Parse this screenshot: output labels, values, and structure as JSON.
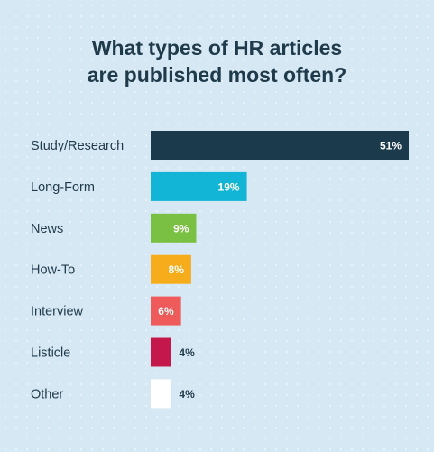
{
  "chart_data": {
    "type": "bar",
    "orientation": "horizontal",
    "title": "What types of HR articles are published most often?",
    "title_lines": [
      "What types of HR articles",
      "are published most often?"
    ],
    "categories": [
      "Study/Research",
      "Long-Form",
      "News",
      "How-To",
      "Interview",
      "Listicle",
      "Other"
    ],
    "values": [
      51,
      19,
      9,
      8,
      6,
      4,
      4
    ],
    "value_labels": [
      "51%",
      "19%",
      "9%",
      "8%",
      "6%",
      "4%",
      "4%"
    ],
    "bar_colors": [
      "#1b3a4b",
      "#13b5d6",
      "#7ac143",
      "#f7ac1b",
      "#ef5b5b",
      "#c4184d",
      "#ffffff"
    ],
    "label_inside": [
      true,
      true,
      true,
      true,
      true,
      false,
      false
    ],
    "xlim": [
      0,
      51
    ],
    "grid": false,
    "legend": "none"
  }
}
